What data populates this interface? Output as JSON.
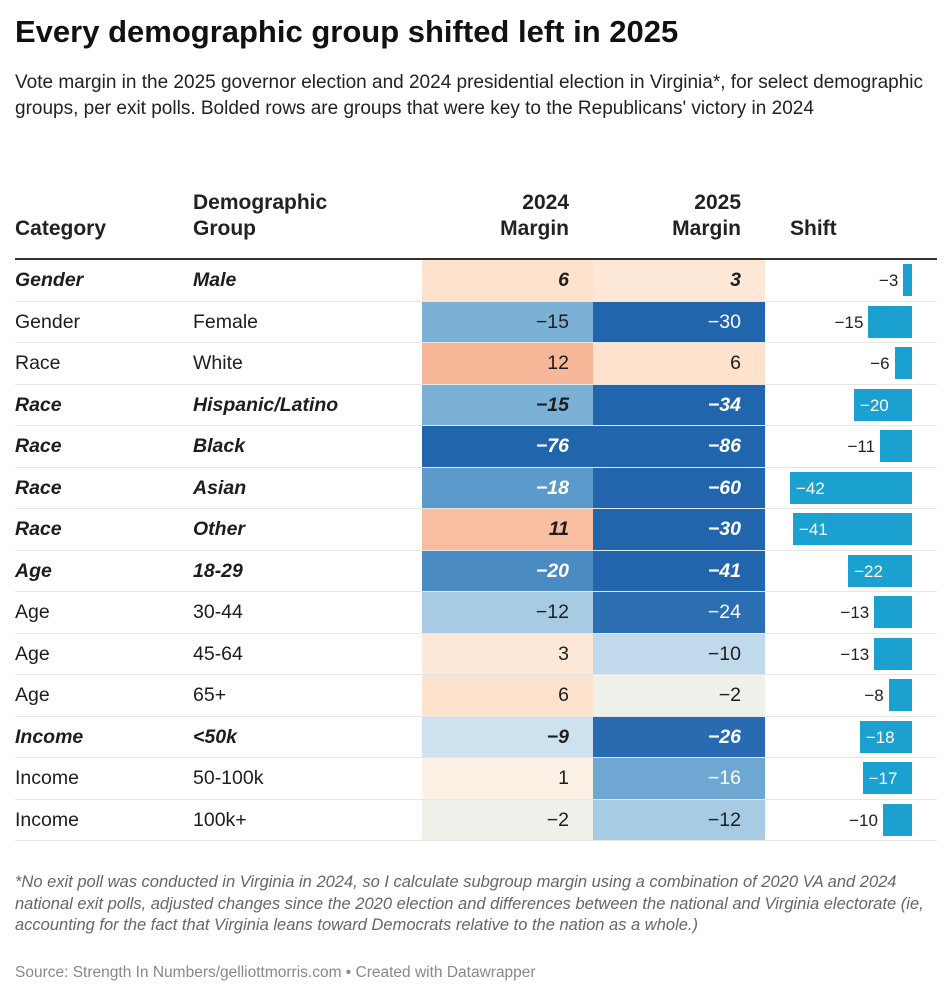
{
  "title": "Every demographic group shifted left in 2025",
  "subtitle": "Vote margin in the 2025 governor election and 2024 presidential election in Virginia*, for select demographic groups, per exit polls. Bolded rows are groups that were key to the Republicans' victory in 2024",
  "chart_data": {
    "type": "table",
    "columns": [
      "Category",
      "Demographic Group",
      "2024 Margin",
      "2025 Margin",
      "Shift"
    ],
    "header_lines": {
      "group": [
        "Demographic",
        "Group"
      ],
      "m24": [
        "2024",
        "Margin"
      ],
      "m25": [
        "2025",
        "Margin"
      ]
    },
    "rows": [
      {
        "category": "Gender",
        "group": "Male",
        "m2024": 6,
        "m2025": 3,
        "shift": -3,
        "bold": true
      },
      {
        "category": "Gender",
        "group": "Female",
        "m2024": -15,
        "m2025": -30,
        "shift": -15,
        "bold": false
      },
      {
        "category": "Race",
        "group": "White",
        "m2024": 12,
        "m2025": 6,
        "shift": -6,
        "bold": false
      },
      {
        "category": "Race",
        "group": "Hispanic/Latino",
        "m2024": -15,
        "m2025": -34,
        "shift": -20,
        "bold": true
      },
      {
        "category": "Race",
        "group": "Black",
        "m2024": -76,
        "m2025": -86,
        "shift": -11,
        "bold": true
      },
      {
        "category": "Race",
        "group": "Asian",
        "m2024": -18,
        "m2025": -60,
        "shift": -42,
        "bold": true
      },
      {
        "category": "Race",
        "group": "Other",
        "m2024": 11,
        "m2025": -30,
        "shift": -41,
        "bold": true
      },
      {
        "category": "Age",
        "group": "18-29",
        "m2024": -20,
        "m2025": -41,
        "shift": -22,
        "bold": true
      },
      {
        "category": "Age",
        "group": "30-44",
        "m2024": -12,
        "m2025": -24,
        "shift": -13,
        "bold": false
      },
      {
        "category": "Age",
        "group": "45-64",
        "m2024": 3,
        "m2025": -10,
        "shift": -13,
        "bold": false
      },
      {
        "category": "Age",
        "group": "65+",
        "m2024": 6,
        "m2025": -2,
        "shift": -8,
        "bold": false
      },
      {
        "category": "Income",
        "group": "<50k",
        "m2024": -9,
        "m2025": -26,
        "shift": -18,
        "bold": true
      },
      {
        "category": "Income",
        "group": "50-100k",
        "m2024": 1,
        "m2025": -16,
        "shift": -17,
        "bold": false
      },
      {
        "category": "Income",
        "group": "100k+",
        "m2024": -2,
        "m2025": -12,
        "shift": -10,
        "bold": false
      }
    ],
    "shift_bar_color": "#1ba1cf",
    "margin_color_scale": {
      "negative": "#2166ac",
      "neutral": "#f0f0ea",
      "positive": "#f4a582"
    }
  },
  "footnote": "*No exit poll was conducted in Virginia in 2024, so I calculate subgroup margin using a combination of 2020 VA and 2024 national exit polls, adjusted changes since the 2020 election and differences between the national and Virginia electorate (ie, accounting for the fact that Virginia leans toward Democrats relative to the nation as a whole.)",
  "source": "Source: Strength In Numbers/gelliottmorris.com • Created with Datawrapper"
}
